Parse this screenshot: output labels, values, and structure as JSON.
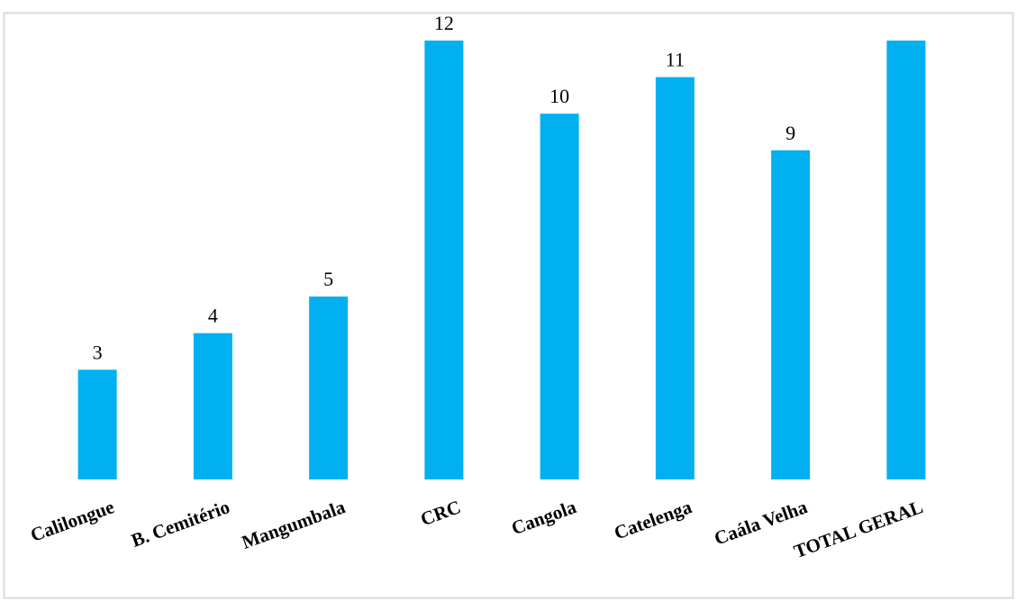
{
  "chart_data": {
    "type": "bar",
    "categories": [
      "Calilongue",
      "B. Cemitério",
      "Mangumbala",
      "CRC",
      "Cangola",
      "Catelenga",
      "Caála Velha",
      "TOTAL GERAL"
    ],
    "values": [
      3,
      4,
      5,
      12,
      10,
      11,
      9,
      12
    ],
    "value_labels": [
      "3",
      "4",
      "5",
      "12",
      "10",
      "11",
      "9",
      null
    ],
    "color": "#00b0f0",
    "ylim": [
      0,
      12
    ]
  }
}
